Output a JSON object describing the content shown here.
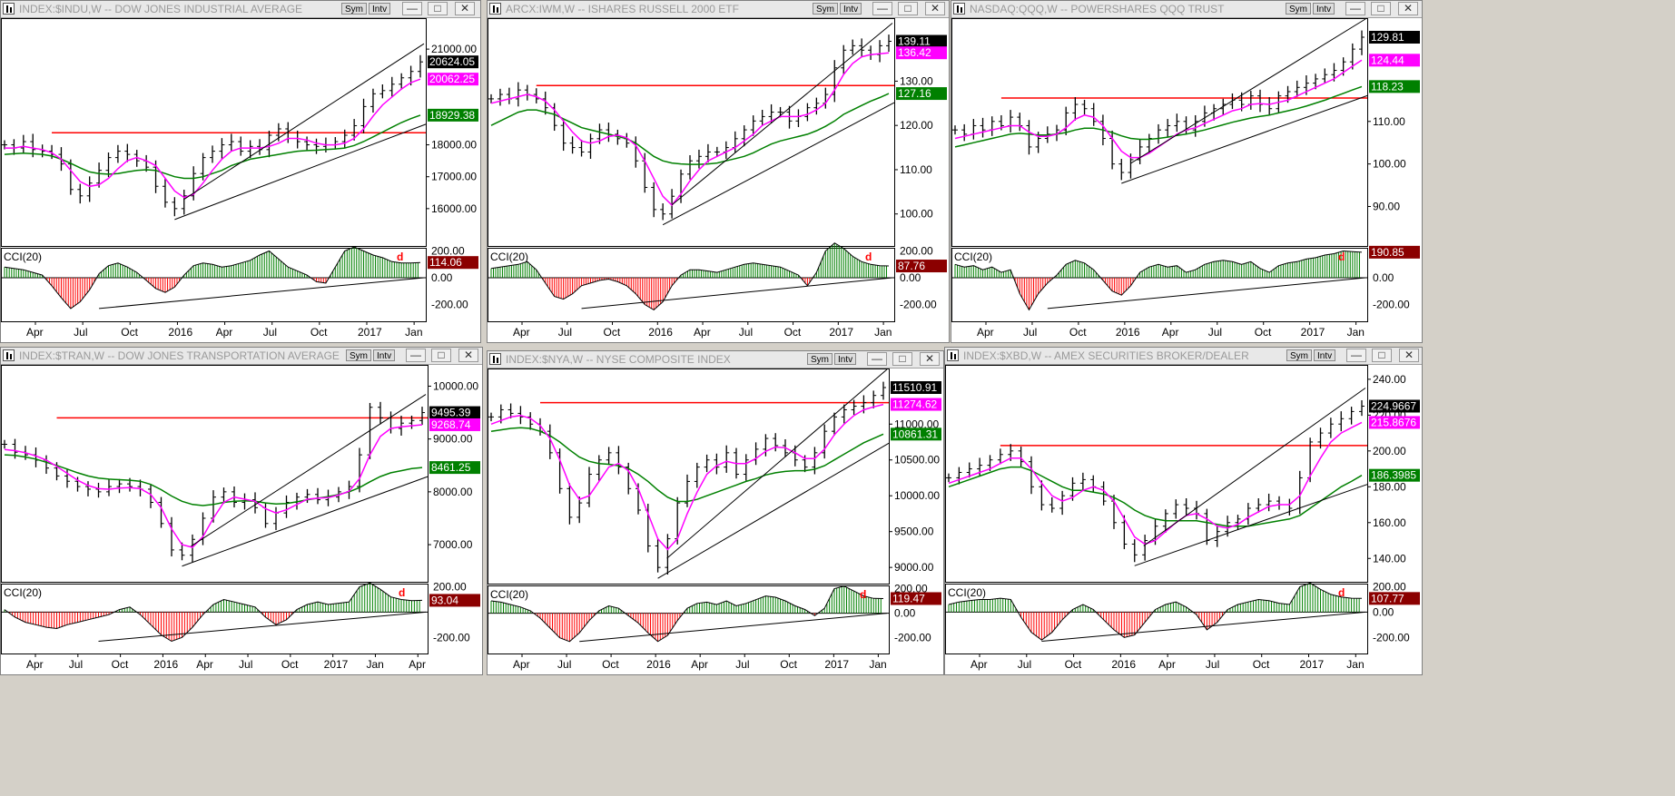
{
  "windows": [
    {
      "id": "indu",
      "title": "INDEX:$INDU,W -- DOW JONES INDUSTRIAL AVERAGE",
      "sym": "Sym",
      "intv": "Intv"
    },
    {
      "id": "iwm",
      "title": "ARCX:IWM,W -- ISHARES RUSSELL 2000 ETF",
      "sym": "Sym",
      "intv": "Intv"
    },
    {
      "id": "qqq",
      "title": "NASDAQ:QQQ,W -- POWERSHARES QQQ TRUST",
      "sym": "Sym",
      "intv": "Intv"
    },
    {
      "id": "tran",
      "title": "INDEX:$TRAN,W -- DOW JONES TRANSPORTATION AVERAGE",
      "sym": "Sym",
      "intv": "Intv"
    },
    {
      "id": "nya",
      "title": "INDEX:$NYA,W -- NYSE COMPOSITE INDEX",
      "sym": "Sym",
      "intv": "Intv"
    },
    {
      "id": "xbd",
      "title": "INDEX:$XBD,W -- AMEX SECURITIES BROKER/DEALER",
      "sym": "Sym",
      "intv": "Intv"
    }
  ],
  "colors": {
    "price": "#000000",
    "sma_fast": "#ff00ff",
    "sma_slow": "#008000",
    "resistance": "#ff0000",
    "cci_pos": "#008000",
    "cci_neg": "#ff0000",
    "last_label": "#000000",
    "fast_label": "#ff00ff",
    "slow_label": "#008000",
    "cci_label": "#8b0000"
  },
  "chart_data": [
    {
      "type": "ohlc-bar",
      "id": "indu",
      "x_ticks": [
        "Apr",
        "Jul",
        "Oct",
        "2016",
        "Apr",
        "Jul",
        "Oct",
        "2017",
        "Jan"
      ],
      "ylim": [
        15000,
        21800
      ],
      "y_ticks": [
        "21000.00",
        "18000.00",
        "17000.00",
        "16000.00"
      ],
      "last_labels": [
        "20624.05",
        "20062.25",
        "18929.38"
      ],
      "resistance": 18380,
      "closes": [
        18000,
        17900,
        18100,
        17850,
        17800,
        17700,
        17400,
        16600,
        16400,
        16800,
        17200,
        17600,
        17800,
        17700,
        17500,
        17300,
        16700,
        16200,
        16000,
        16400,
        17100,
        17600,
        17800,
        18000,
        18100,
        17800,
        17950,
        17850,
        18300,
        18500,
        18200,
        18100,
        18000,
        17950,
        18000,
        18100,
        18300,
        18600,
        19200,
        19600,
        19700,
        19900,
        20100,
        20300,
        20600
      ],
      "sma_fast": [
        17900,
        17900,
        17950,
        17900,
        17850,
        17750,
        17550,
        17200,
        16850,
        16700,
        16750,
        16950,
        17250,
        17500,
        17600,
        17500,
        17350,
        16950,
        16550,
        16350,
        16450,
        16800,
        17200,
        17550,
        17800,
        17900,
        17900,
        17900,
        17950,
        18050,
        18200,
        18200,
        18150,
        18050,
        18000,
        18000,
        18050,
        18200,
        18500,
        18900,
        19250,
        19500,
        19750,
        19950,
        20060
      ],
      "sma_slow": [
        17700,
        17720,
        17740,
        17720,
        17700,
        17650,
        17550,
        17420,
        17280,
        17150,
        17100,
        17080,
        17100,
        17150,
        17200,
        17220,
        17200,
        17100,
        17000,
        16950,
        16950,
        17000,
        17100,
        17200,
        17350,
        17450,
        17550,
        17600,
        17650,
        17700,
        17750,
        17800,
        17820,
        17830,
        17850,
        17870,
        17900,
        17980,
        18100,
        18250,
        18400,
        18550,
        18700,
        18820,
        18930
      ],
      "cci_label": "114.06",
      "cci_ticks": [
        "200.00",
        "0.00",
        "-200.00"
      ],
      "cci": [
        80,
        70,
        60,
        40,
        20,
        -60,
        -150,
        -230,
        -180,
        -90,
        30,
        90,
        110,
        80,
        40,
        -20,
        -80,
        -110,
        -70,
        20,
        90,
        110,
        100,
        80,
        90,
        110,
        130,
        170,
        200,
        140,
        80,
        50,
        20,
        -30,
        -40,
        80,
        200,
        230,
        200,
        170,
        150,
        120,
        110,
        110,
        114
      ],
      "divergence_mark": "d"
    },
    {
      "type": "ohlc-bar",
      "id": "iwm",
      "x_ticks": [
        "Apr",
        "Jul",
        "Oct",
        "2016",
        "Apr",
        "Jul",
        "Oct",
        "2017",
        "Jan"
      ],
      "ylim": [
        94,
        143
      ],
      "y_ticks": [
        "130.00",
        "120.00",
        "110.00",
        "100.00"
      ],
      "last_labels": [
        "139.11",
        "136.42",
        "127.16"
      ],
      "resistance": 129,
      "closes": [
        126,
        127,
        126,
        128,
        127,
        126,
        124,
        120,
        116,
        115,
        114,
        117,
        119,
        118,
        117,
        116,
        112,
        106,
        101,
        100,
        104,
        109,
        112,
        113,
        114,
        114,
        115,
        117,
        119,
        121,
        122,
        123,
        123,
        121,
        122,
        124,
        125,
        127,
        133,
        137,
        138,
        137,
        136,
        138,
        139
      ],
      "sma_fast": [
        125,
        125.5,
        126,
        126.5,
        127,
        126.5,
        125.5,
        123.5,
        121,
        118.5,
        116.5,
        116,
        116.5,
        117.5,
        117.8,
        117.2,
        115.5,
        112,
        108,
        104,
        102,
        104.5,
        107.5,
        110,
        112,
        113,
        114,
        115,
        116.5,
        118,
        120,
        121,
        122,
        122,
        122,
        122.5,
        123.5,
        125,
        128,
        131.5,
        134,
        135.5,
        136,
        136.2,
        136.4
      ],
      "sma_slow": [
        120,
        121,
        122,
        123,
        123.5,
        123.5,
        123,
        122.5,
        121.5,
        120.5,
        119.5,
        119,
        118.5,
        118,
        117.5,
        117,
        116,
        114.5,
        113,
        112,
        111.5,
        111.3,
        111.2,
        111.2,
        111.3,
        111.5,
        112,
        112.5,
        113,
        113.8,
        114.8,
        115.8,
        116.5,
        117,
        117.5,
        118,
        118.8,
        119.8,
        121,
        122.5,
        123.5,
        124.5,
        125.5,
        126.3,
        127.2
      ],
      "cci_label": "87.76",
      "cci_ticks": [
        "200.00",
        "0.00",
        "-200.00"
      ],
      "cci": [
        70,
        80,
        90,
        100,
        120,
        60,
        -40,
        -140,
        -160,
        -120,
        -60,
        -40,
        -20,
        -10,
        -30,
        -60,
        -120,
        -200,
        -240,
        -180,
        -60,
        20,
        60,
        60,
        50,
        40,
        60,
        80,
        100,
        110,
        100,
        90,
        80,
        50,
        20,
        -60,
        40,
        200,
        260,
        220,
        160,
        120,
        100,
        90,
        88
      ],
      "divergence_mark": "d"
    },
    {
      "type": "ohlc-bar",
      "id": "qqq",
      "x_ticks": [
        "Apr",
        "Jul",
        "Oct",
        "2016",
        "Apr",
        "Jul",
        "Oct",
        "2017",
        "Jan"
      ],
      "ylim": [
        82,
        133
      ],
      "y_ticks": [
        "110.00",
        "100.00",
        "90.00"
      ],
      "last_labels": [
        "129.81",
        "124.44",
        "118.23"
      ],
      "resistance": 115.5,
      "closes": [
        108,
        107,
        109,
        108,
        110,
        109,
        111,
        109,
        104,
        106,
        107,
        108,
        112,
        114,
        113,
        110,
        106,
        100,
        98,
        101,
        104,
        106,
        108,
        109,
        110,
        108,
        110,
        112,
        113,
        114,
        115,
        114,
        116,
        114,
        113,
        116,
        117,
        118,
        119,
        120,
        121,
        122,
        124,
        127,
        129.8
      ],
      "sma_fast": [
        106,
        106.5,
        107,
        107.5,
        108,
        108.5,
        109,
        109,
        107.5,
        106.5,
        106.5,
        107,
        108.5,
        110.5,
        111.5,
        111,
        109,
        106,
        103,
        101.5,
        101.5,
        102.5,
        104,
        105.5,
        107,
        108,
        108.5,
        109.5,
        110.5,
        111.5,
        112.5,
        113,
        114,
        114.2,
        114,
        114.5,
        115,
        116,
        117,
        118,
        119,
        120,
        121.5,
        123,
        124.4
      ],
      "sma_slow": [
        104,
        104.5,
        105,
        105.5,
        106,
        106.5,
        107,
        107.2,
        107,
        106.8,
        106.8,
        107,
        107.4,
        108,
        108.4,
        108.4,
        108,
        107.4,
        106.6,
        106,
        105.8,
        105.8,
        106,
        106.3,
        106.7,
        107,
        107.5,
        108,
        108.6,
        109.2,
        109.8,
        110.3,
        110.8,
        111.2,
        111.5,
        112,
        112.5,
        113,
        113.6,
        114.3,
        115,
        115.8,
        116.6,
        117.4,
        118.2
      ],
      "cci_label": "190.85",
      "cci_ticks": [
        "200.00",
        "0.00",
        "-200.00"
      ],
      "cci": [
        100,
        80,
        90,
        60,
        80,
        40,
        60,
        -120,
        -240,
        -120,
        -40,
        20,
        100,
        130,
        110,
        60,
        -20,
        -100,
        -130,
        -60,
        40,
        80,
        100,
        80,
        90,
        40,
        60,
        100,
        120,
        130,
        120,
        100,
        120,
        70,
        40,
        90,
        110,
        120,
        140,
        150,
        170,
        180,
        200,
        195,
        191
      ],
      "divergence_mark": "d"
    },
    {
      "type": "ohlc-bar",
      "id": "tran",
      "x_ticks": [
        "Apr",
        "Jul",
        "Oct",
        "2016",
        "Apr",
        "Jul",
        "Oct",
        "2017",
        "Jan",
        "Apr"
      ],
      "ylim": [
        6400,
        10300
      ],
      "y_ticks": [
        "10000.00",
        "9000.00",
        "8000.00",
        "7000.00"
      ],
      "last_labels": [
        "9495.39",
        "9268.74",
        "8461.25"
      ],
      "resistance": 9400,
      "closes": [
        8900,
        8750,
        8700,
        8600,
        8450,
        8300,
        8200,
        8100,
        8050,
        8000,
        8100,
        8150,
        8100,
        8050,
        7800,
        7400,
        6900,
        6800,
        7100,
        7500,
        7900,
        8000,
        7800,
        7850,
        7700,
        7400,
        7600,
        7800,
        7900,
        7950,
        7850,
        7900,
        8000,
        8100,
        8700,
        9600,
        9400,
        9200,
        9300,
        9350,
        9500
      ],
      "sma_fast": [
        8800,
        8780,
        8740,
        8680,
        8600,
        8480,
        8350,
        8220,
        8120,
        8060,
        8050,
        8070,
        8080,
        8060,
        7950,
        7700,
        7300,
        7000,
        6950,
        7150,
        7500,
        7800,
        7900,
        7860,
        7820,
        7680,
        7600,
        7660,
        7760,
        7860,
        7880,
        7890,
        7940,
        8010,
        8250,
        8700,
        9050,
        9200,
        9230,
        9250,
        9270
      ],
      "sma_slow": [
        8700,
        8690,
        8660,
        8620,
        8560,
        8500,
        8430,
        8360,
        8300,
        8260,
        8240,
        8230,
        8220,
        8200,
        8140,
        8040,
        7920,
        7820,
        7760,
        7740,
        7760,
        7800,
        7820,
        7830,
        7820,
        7790,
        7770,
        7780,
        7810,
        7850,
        7880,
        7910,
        7950,
        8000,
        8080,
        8190,
        8290,
        8360,
        8400,
        8440,
        8460
      ],
      "cci_label": "93.04",
      "cci_ticks": [
        "200.00",
        "-200.00"
      ],
      "cci": [
        20,
        -40,
        -80,
        -100,
        -120,
        -130,
        -100,
        -80,
        -60,
        -40,
        -20,
        20,
        40,
        -20,
        -100,
        -180,
        -230,
        -200,
        -120,
        -20,
        60,
        100,
        80,
        60,
        40,
        -40,
        -100,
        -60,
        20,
        60,
        80,
        60,
        70,
        80,
        200,
        230,
        180,
        120,
        100,
        90,
        93
      ],
      "divergence_mark": "d"
    },
    {
      "type": "ohlc-bar",
      "id": "nya",
      "x_ticks": [
        "Apr",
        "Jul",
        "Oct",
        "2016",
        "Apr",
        "Jul",
        "Oct",
        "2017",
        "Jan"
      ],
      "ylim": [
        8850,
        11700
      ],
      "y_ticks": [
        "11000.00",
        "10500.00",
        "10000.00",
        "9500.00",
        "9000.00"
      ],
      "last_labels": [
        "11510.91",
        "11274.62",
        "10861.31"
      ],
      "resistance": 11300,
      "closes": [
        11100,
        11200,
        11150,
        11100,
        11000,
        10900,
        10600,
        10100,
        9700,
        9900,
        10300,
        10500,
        10600,
        10400,
        10100,
        9800,
        9300,
        9000,
        9400,
        9900,
        10200,
        10400,
        10500,
        10400,
        10600,
        10300,
        10500,
        10650,
        10800,
        10700,
        10600,
        10500,
        10400,
        10600,
        10900,
        11100,
        11200,
        11250,
        11300,
        11400,
        11510
      ],
      "sma_fast": [
        11000,
        11050,
        11100,
        11120,
        11080,
        10980,
        10800,
        10500,
        10150,
        9950,
        10000,
        10200,
        10400,
        10450,
        10350,
        10100,
        9750,
        9400,
        9250,
        9400,
        9750,
        10050,
        10300,
        10420,
        10480,
        10450,
        10450,
        10520,
        10620,
        10680,
        10670,
        10600,
        10520,
        10520,
        10650,
        10850,
        11000,
        11120,
        11200,
        11240,
        11275
      ],
      "sma_slow": [
        10900,
        10920,
        10940,
        10950,
        10940,
        10900,
        10840,
        10750,
        10640,
        10540,
        10480,
        10450,
        10440,
        10420,
        10380,
        10300,
        10200,
        10080,
        9980,
        9920,
        9920,
        9950,
        10000,
        10050,
        10100,
        10150,
        10200,
        10240,
        10290,
        10320,
        10340,
        10350,
        10350,
        10370,
        10420,
        10500,
        10580,
        10660,
        10740,
        10800,
        10860
      ],
      "cci_label": "119.47",
      "cci_ticks": [
        "200.00",
        "0.00",
        "-200.00"
      ],
      "cci": [
        100,
        90,
        70,
        50,
        20,
        -40,
        -120,
        -200,
        -230,
        -160,
        -60,
        20,
        60,
        40,
        -20,
        -80,
        -160,
        -230,
        -180,
        -60,
        40,
        80,
        90,
        70,
        100,
        60,
        80,
        110,
        140,
        130,
        100,
        60,
        30,
        -20,
        40,
        200,
        220,
        180,
        140,
        120,
        119
      ],
      "divergence_mark": "d"
    },
    {
      "type": "ohlc-bar",
      "id": "xbd",
      "x_ticks": [
        "Apr",
        "Jul",
        "Oct",
        "2016",
        "Apr",
        "Jul",
        "Oct",
        "2017",
        "Jan"
      ],
      "ylim": [
        130,
        245
      ],
      "y_ticks": [
        "240.00",
        "220.00",
        "200.00",
        "180.00",
        "160.00",
        "140.00"
      ],
      "last_labels": [
        "224.9667",
        "215.8676",
        "186.3985"
      ],
      "resistance": 203,
      "closes": [
        185,
        188,
        190,
        192,
        195,
        198,
        200,
        194,
        180,
        170,
        168,
        175,
        182,
        184,
        180,
        172,
        160,
        148,
        142,
        150,
        158,
        165,
        170,
        168,
        165,
        150,
        155,
        160,
        162,
        168,
        170,
        172,
        170,
        168,
        185,
        205,
        210,
        215,
        218,
        222,
        225
      ],
      "sma_fast": [
        182,
        184,
        186,
        188,
        190,
        193,
        196,
        196,
        190,
        182,
        175,
        172,
        174,
        178,
        180,
        178,
        172,
        162,
        152,
        148,
        150,
        155,
        160,
        164,
        165,
        162,
        158,
        157,
        159,
        163,
        166,
        169,
        170,
        170,
        175,
        186,
        196,
        205,
        210,
        213,
        215.9
      ],
      "sma_slow": [
        180,
        182,
        184,
        186,
        188,
        190,
        191,
        191,
        189,
        186,
        183,
        180,
        178,
        178,
        177,
        176,
        174,
        171,
        167,
        164,
        162,
        161,
        161,
        161,
        161,
        160,
        159,
        158,
        158,
        158,
        159,
        160,
        161,
        162,
        164,
        168,
        172,
        176,
        180,
        183,
        186.4
      ],
      "cci_label": "107.77",
      "cci_ticks": [
        "200.00",
        "0.00",
        "-200.00"
      ],
      "cci": [
        60,
        80,
        90,
        100,
        100,
        110,
        100,
        -40,
        -160,
        -220,
        -160,
        -60,
        20,
        60,
        20,
        -60,
        -140,
        -200,
        -180,
        -80,
        20,
        60,
        80,
        40,
        -20,
        -140,
        -80,
        20,
        60,
        80,
        100,
        90,
        70,
        60,
        200,
        230,
        180,
        140,
        120,
        110,
        108
      ],
      "divergence_mark": "d"
    }
  ]
}
